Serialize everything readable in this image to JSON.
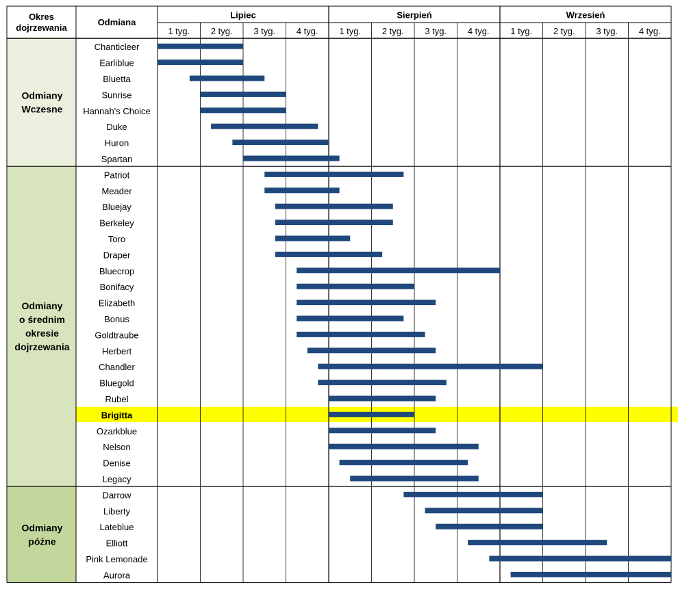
{
  "chart_data": {
    "type": "gantt",
    "header": {
      "period_col": [
        "Okres",
        "dojrzewania"
      ],
      "variety_col": "Odmiana"
    },
    "months": [
      "Lipiec",
      "Sierpień",
      "Wrzesień"
    ],
    "week_labels": [
      "1 tyg.",
      "2 tyg.",
      "3 tyg.",
      "4 tyg."
    ],
    "groups": [
      {
        "lines": [
          "Odmiany",
          "Wczesne"
        ],
        "count": 8,
        "color": "#ebf1de"
      },
      {
        "lines": [
          "Odmiany",
          "o średnim",
          "okresie",
          "dojrzewania"
        ],
        "count": 20,
        "color": "#d7e4bd"
      },
      {
        "lines": [
          "Odmiany",
          "późne"
        ],
        "count": 6,
        "color": "#c3d69b"
      }
    ],
    "bar_color": "#1f497d",
    "highlight_color": "#ffff00",
    "x_unit": "week (0 = start of 1 tyg. Lipiec, 12 = end of 4 tyg. Wrzesień)",
    "varieties": [
      {
        "name": "Chanticleer",
        "start": 0.0,
        "end": 2.0
      },
      {
        "name": "Earliblue",
        "start": 0.0,
        "end": 2.0
      },
      {
        "name": "Bluetta",
        "start": 0.75,
        "end": 2.5
      },
      {
        "name": "Sunrise",
        "start": 1.0,
        "end": 3.0
      },
      {
        "name": "Hannah's Choice",
        "start": 1.0,
        "end": 3.0
      },
      {
        "name": "Duke",
        "start": 1.25,
        "end": 3.75
      },
      {
        "name": "Huron",
        "start": 1.75,
        "end": 4.0
      },
      {
        "name": "Spartan",
        "start": 2.0,
        "end": 4.25
      },
      {
        "name": "Patriot",
        "start": 2.5,
        "end": 5.75
      },
      {
        "name": "Meader",
        "start": 2.5,
        "end": 4.25
      },
      {
        "name": "Bluejay",
        "start": 2.75,
        "end": 5.5
      },
      {
        "name": "Berkeley",
        "start": 2.75,
        "end": 5.5
      },
      {
        "name": "Toro",
        "start": 2.75,
        "end": 4.5
      },
      {
        "name": "Draper",
        "start": 2.75,
        "end": 5.25
      },
      {
        "name": "Bluecrop",
        "start": 3.25,
        "end": 8.0
      },
      {
        "name": "Bonifacy",
        "start": 3.25,
        "end": 6.0
      },
      {
        "name": "Elizabeth",
        "start": 3.25,
        "end": 6.5
      },
      {
        "name": "Bonus",
        "start": 3.25,
        "end": 5.75
      },
      {
        "name": "Goldtraube",
        "start": 3.25,
        "end": 6.25
      },
      {
        "name": "Herbert",
        "start": 3.5,
        "end": 6.5
      },
      {
        "name": "Chandler",
        "start": 3.75,
        "end": 9.0
      },
      {
        "name": "Bluegold",
        "start": 3.75,
        "end": 6.75
      },
      {
        "name": "Rubel",
        "start": 4.0,
        "end": 6.5
      },
      {
        "name": "Brigitta",
        "start": 4.0,
        "end": 6.0,
        "highlight": true
      },
      {
        "name": "Ozarkblue",
        "start": 4.0,
        "end": 6.5
      },
      {
        "name": "Nelson",
        "start": 4.0,
        "end": 7.5
      },
      {
        "name": "Denise",
        "start": 4.25,
        "end": 7.25
      },
      {
        "name": "Legacy",
        "start": 4.5,
        "end": 7.5
      },
      {
        "name": "Darrow",
        "start": 5.75,
        "end": 9.0
      },
      {
        "name": "Liberty",
        "start": 6.25,
        "end": 9.0
      },
      {
        "name": "Lateblue",
        "start": 6.5,
        "end": 9.0
      },
      {
        "name": "Elliott",
        "start": 7.25,
        "end": 10.5
      },
      {
        "name": "Pink Lemonade",
        "start": 7.75,
        "end": 12.0
      },
      {
        "name": "Aurora",
        "start": 8.25,
        "end": 12.0
      }
    ]
  }
}
